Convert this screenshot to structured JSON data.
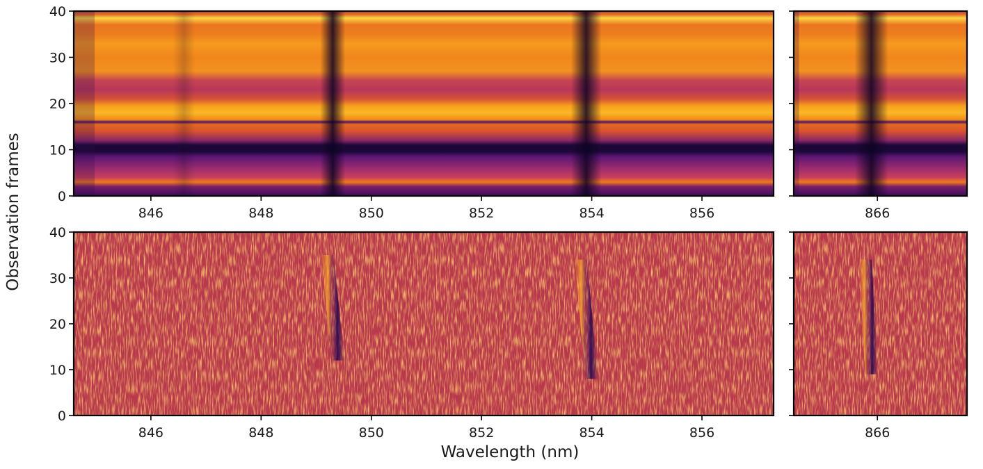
{
  "figure": {
    "ylabel": "Observation frames",
    "xlabel": "Wavelength (nm)"
  },
  "colors": {
    "colormap": "inferno",
    "frame": "#000000"
  },
  "chart_data": [
    {
      "id": "top-left",
      "type": "heatmap",
      "content": "spectral time series",
      "xlim": [
        844.6,
        857.3
      ],
      "ylim": [
        0,
        40
      ],
      "xticks": [
        846,
        848,
        850,
        852,
        854,
        856
      ],
      "xticklabels": [
        "846",
        "848",
        "850",
        "852",
        "854",
        "856"
      ],
      "yticks": [
        0,
        10,
        20,
        30,
        40
      ],
      "yticklabels": [
        "0",
        "10",
        "20",
        "30",
        "40"
      ],
      "absorption_lines_nm": [
        849.3,
        853.9
      ],
      "dark_frames": [
        10,
        11
      ]
    },
    {
      "id": "top-right",
      "type": "heatmap",
      "content": "spectral time series",
      "xlim": [
        864.6,
        867.5
      ],
      "ylim": [
        0,
        40
      ],
      "xticks": [
        866
      ],
      "xticklabels": [
        "866"
      ],
      "absorption_lines_nm": [
        865.9
      ]
    },
    {
      "id": "bottom-left",
      "type": "heatmap",
      "content": "residuals",
      "xlim": [
        844.6,
        857.3
      ],
      "ylim": [
        0,
        40
      ],
      "xticks": [
        846,
        848,
        850,
        852,
        854,
        856
      ],
      "xticklabels": [
        "846",
        "848",
        "850",
        "852",
        "854",
        "856"
      ],
      "yticks": [
        0,
        10,
        20,
        30,
        40
      ],
      "yticklabels": [
        "0",
        "10",
        "20",
        "30",
        "40"
      ],
      "residual_features": [
        {
          "wavelength_nm": [
            849.4,
            849.2
          ],
          "frames": [
            12,
            35
          ]
        },
        {
          "wavelength_nm": [
            854.0,
            853.8
          ],
          "frames": [
            8,
            34
          ]
        }
      ]
    },
    {
      "id": "bottom-right",
      "type": "heatmap",
      "content": "residuals",
      "xlim": [
        864.6,
        867.5
      ],
      "ylim": [
        0,
        40
      ],
      "xticks": [
        866
      ],
      "xticklabels": [
        "866"
      ],
      "residual_features": [
        {
          "wavelength_nm": [
            865.9,
            865.8
          ],
          "frames": [
            9,
            34
          ]
        }
      ]
    }
  ]
}
